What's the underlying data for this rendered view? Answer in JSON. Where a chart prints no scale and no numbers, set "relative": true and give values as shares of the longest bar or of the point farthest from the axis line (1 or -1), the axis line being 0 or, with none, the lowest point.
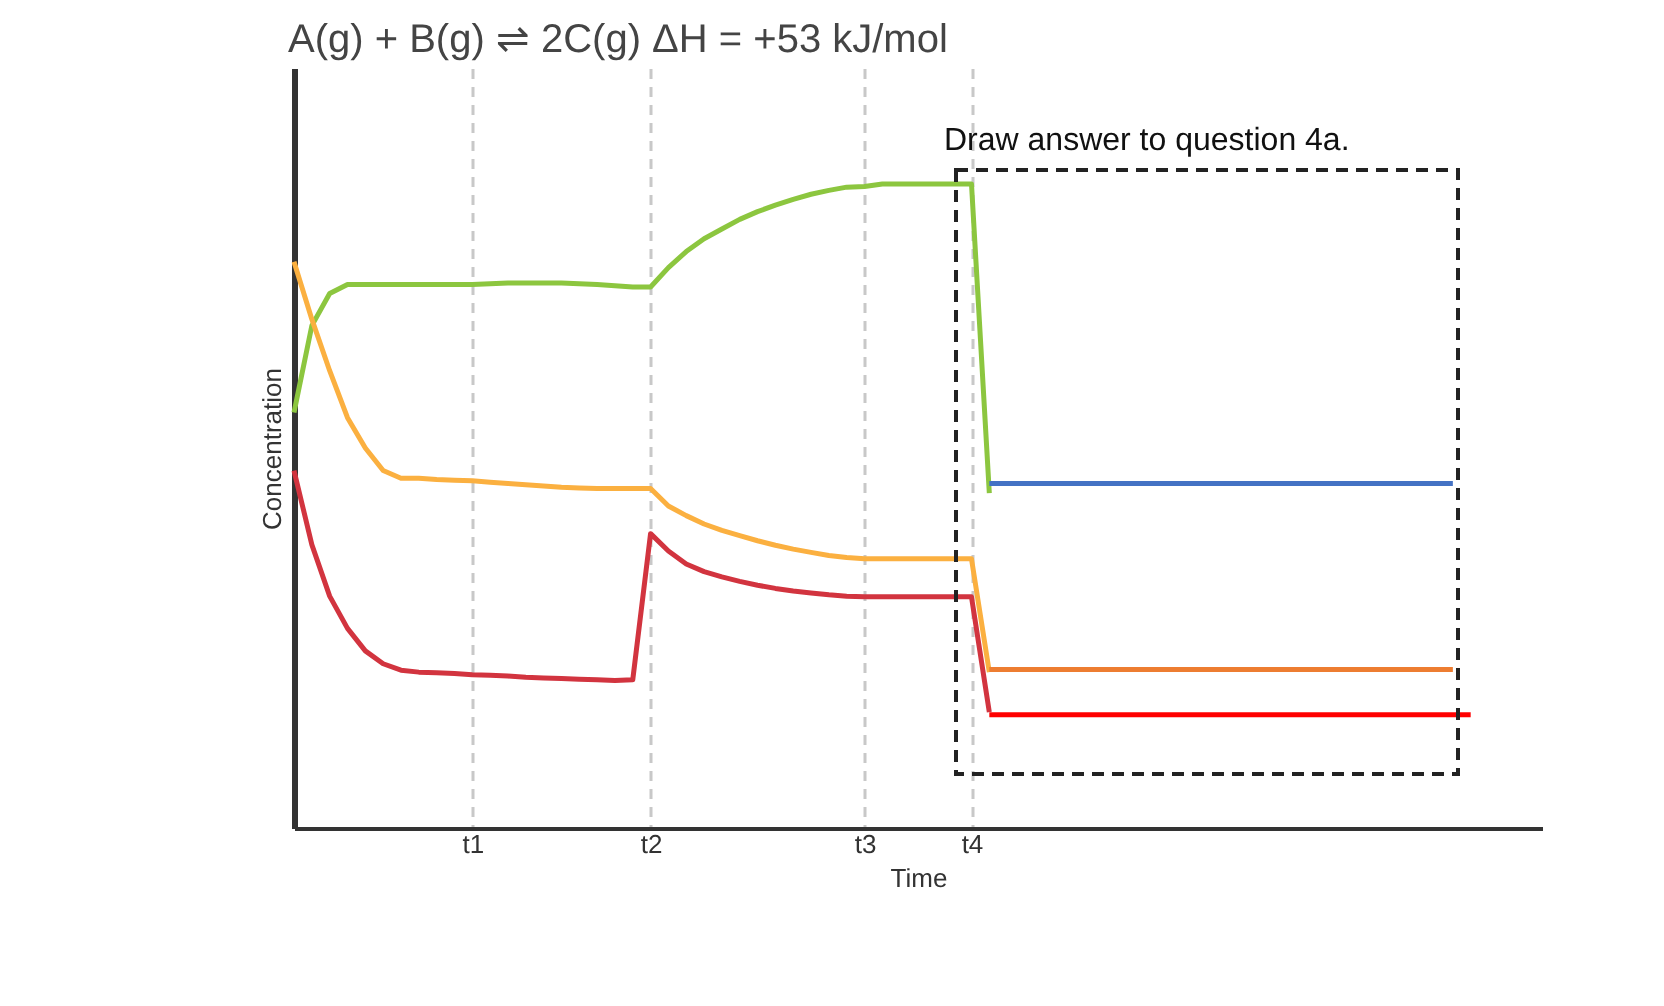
{
  "chart_data": {
    "type": "line",
    "relative": true,
    "title": "A(g) + B(g) ⇌ 2C(g) ΔH = +53 kJ/mol",
    "xlabel": "Time",
    "ylabel": "Concentration",
    "annotations": [
      "Draw answer to question 4a."
    ],
    "categories": [
      null,
      null,
      null,
      null,
      null,
      null,
      null,
      null,
      null,
      null,
      "t1",
      null,
      null,
      null,
      null,
      null,
      null,
      null,
      null,
      null,
      "t2",
      null,
      null,
      null,
      null,
      null,
      null,
      null,
      null,
      null,
      null,
      null,
      "t3",
      null,
      null,
      null,
      null,
      null,
      "t4",
      null,
      null,
      null,
      null,
      null,
      null,
      null,
      null,
      null,
      null,
      null,
      null,
      null,
      null,
      null,
      null,
      null,
      null,
      null,
      null,
      null,
      null,
      null,
      null,
      null,
      null,
      null,
      null,
      null,
      null,
      null
    ],
    "grid": "x",
    "legend": false,
    "marker": "none",
    "line_style": "solid",
    "series": [
      {
        "color": "#8cc63f",
        "values": [
          0.645,
          0.78,
          0.83,
          0.844,
          0.844,
          0.844,
          0.844,
          0.844,
          0.844,
          0.844,
          0.844,
          0.845,
          0.846,
          0.846,
          0.846,
          0.846,
          0.845,
          0.844,
          0.842,
          0.84,
          0.84,
          0.87,
          0.895,
          0.915,
          0.93,
          0.945,
          0.957,
          0.967,
          0.976,
          0.984,
          0.99,
          0.995,
          0.996,
          1.0,
          1.0,
          1.0,
          1.0,
          1.0,
          1.0,
          0.52,
          null,
          null,
          null,
          null,
          null,
          null,
          null,
          null,
          null,
          null,
          null,
          null,
          null,
          null,
          null,
          null,
          null,
          null,
          null,
          null,
          null,
          null,
          null,
          null,
          null,
          null,
          null,
          null,
          null,
          null
        ]
      },
      {
        "color": "#fbb040",
        "values": [
          0.879,
          0.79,
          0.71,
          0.637,
          0.59,
          0.555,
          0.543,
          0.543,
          0.541,
          0.54,
          0.539,
          0.537,
          0.535,
          0.533,
          0.531,
          0.529,
          0.528,
          0.527,
          0.527,
          0.527,
          0.527,
          0.5,
          0.485,
          0.472,
          0.462,
          0.454,
          0.446,
          0.439,
          0.433,
          0.428,
          0.423,
          0.42,
          0.418,
          0.418,
          0.418,
          0.418,
          0.418,
          0.418,
          0.418,
          0.242,
          null,
          null,
          null,
          null,
          null,
          null,
          null,
          null,
          null,
          null,
          null,
          null,
          null,
          null,
          null,
          null,
          null,
          null,
          null,
          null,
          null,
          null,
          null,
          null,
          null,
          null,
          null,
          null,
          null,
          null
        ]
      },
      {
        "color": "#d2343f",
        "values": [
          0.555,
          0.44,
          0.36,
          0.31,
          0.275,
          0.255,
          0.245,
          0.242,
          0.241,
          0.24,
          0.238,
          0.237,
          0.236,
          0.234,
          0.233,
          0.232,
          0.231,
          0.23,
          0.229,
          0.23,
          0.457,
          0.43,
          0.41,
          0.398,
          0.39,
          0.383,
          0.377,
          0.372,
          0.368,
          0.365,
          0.362,
          0.36,
          0.359,
          0.359,
          0.359,
          0.359,
          0.359,
          0.359,
          0.359,
          0.18,
          null,
          null,
          null,
          null,
          null,
          null,
          null,
          null,
          null,
          null,
          null,
          null,
          null,
          null,
          null,
          null,
          null,
          null,
          null,
          null,
          null,
          null,
          null,
          null,
          null,
          null,
          null,
          null,
          null,
          null
        ]
      },
      {
        "color": "#4472c4",
        "values": [
          null,
          null,
          null,
          null,
          null,
          null,
          null,
          null,
          null,
          null,
          null,
          null,
          null,
          null,
          null,
          null,
          null,
          null,
          null,
          null,
          null,
          null,
          null,
          null,
          null,
          null,
          null,
          null,
          null,
          null,
          null,
          null,
          null,
          null,
          null,
          null,
          null,
          null,
          null,
          0.535,
          0.535,
          0.535,
          0.535,
          0.535,
          0.535,
          0.535,
          0.535,
          0.535,
          0.535,
          0.535,
          0.535,
          0.535,
          0.535,
          0.535,
          0.535,
          0.535,
          0.535,
          0.535,
          0.535,
          0.535,
          0.535,
          0.535,
          0.535,
          0.535,
          0.535,
          0.535,
          null,
          null,
          null,
          null
        ]
      },
      {
        "color": "#ed7d31",
        "values": [
          null,
          null,
          null,
          null,
          null,
          null,
          null,
          null,
          null,
          null,
          null,
          null,
          null,
          null,
          null,
          null,
          null,
          null,
          null,
          null,
          null,
          null,
          null,
          null,
          null,
          null,
          null,
          null,
          null,
          null,
          null,
          null,
          null,
          null,
          null,
          null,
          null,
          null,
          null,
          0.246,
          0.246,
          0.246,
          0.246,
          0.246,
          0.246,
          0.246,
          0.246,
          0.246,
          0.246,
          0.246,
          0.246,
          0.246,
          0.246,
          0.246,
          0.246,
          0.246,
          0.246,
          0.246,
          0.246,
          0.246,
          0.246,
          0.246,
          0.246,
          0.246,
          0.246,
          0.246,
          null,
          null,
          null,
          null
        ]
      },
      {
        "color": "#ff0000",
        "values": [
          null,
          null,
          null,
          null,
          null,
          null,
          null,
          null,
          null,
          null,
          null,
          null,
          null,
          null,
          null,
          null,
          null,
          null,
          null,
          null,
          null,
          null,
          null,
          null,
          null,
          null,
          null,
          null,
          null,
          null,
          null,
          null,
          null,
          null,
          null,
          null,
          null,
          null,
          null,
          0.176,
          0.176,
          0.176,
          0.176,
          0.176,
          0.176,
          0.176,
          0.176,
          0.176,
          0.176,
          0.176,
          0.176,
          0.176,
          0.176,
          0.176,
          0.176,
          0.176,
          0.176,
          0.176,
          0.176,
          0.176,
          0.176,
          0.176,
          0.176,
          0.176,
          0.176,
          0.176,
          0.176,
          null,
          null,
          null
        ]
      }
    ]
  }
}
